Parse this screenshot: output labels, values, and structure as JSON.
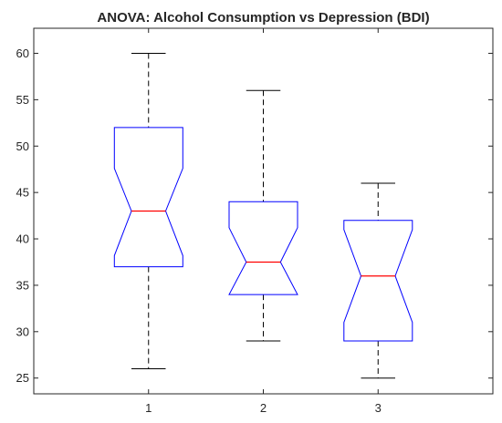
{
  "chart_data": {
    "type": "box",
    "title": "ANOVA: Alcohol Consumption vs Depression (BDI)",
    "xlabel": "",
    "ylabel": "",
    "categories": [
      "1",
      "2",
      "3"
    ],
    "ylim": [
      23.3,
      62.7
    ],
    "yticks": [
      25,
      30,
      35,
      40,
      45,
      50,
      55,
      60
    ],
    "notched": true,
    "grid": false,
    "boxes": [
      {
        "category": "1",
        "whisker_low": 26,
        "q1": 37,
        "notch_low": 38.2,
        "median": 43,
        "notch_high": 47.6,
        "q3": 52,
        "whisker_high": 60
      },
      {
        "category": "2",
        "whisker_low": 29,
        "q1": 34,
        "notch_low": 34,
        "median": 37.5,
        "notch_high": 41.2,
        "q3": 44,
        "whisker_high": 56
      },
      {
        "category": "3",
        "whisker_low": 25,
        "q1": 29,
        "notch_low": 31,
        "median": 36,
        "notch_high": 41,
        "q3": 42,
        "whisker_high": 46
      }
    ],
    "colors": {
      "box": "#0000ff",
      "median": "#ff0000",
      "whisker": "#000000",
      "axis": "#262626"
    }
  }
}
